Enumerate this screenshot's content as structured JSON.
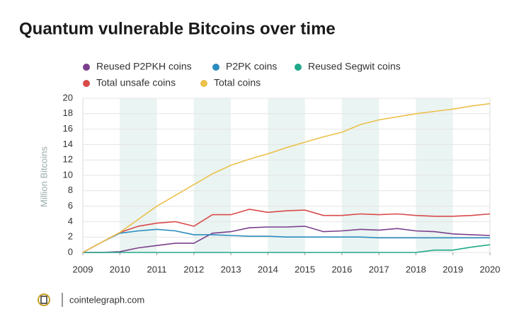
{
  "chart_data": {
    "type": "line",
    "title": "Quantum vulnerable Bitcoins over time",
    "y_label": "Million Bitcoins",
    "x": [
      2009,
      2009.5,
      2010,
      2010.5,
      2011,
      2011.5,
      2012,
      2012.5,
      2013,
      2013.5,
      2014,
      2014.5,
      2015,
      2015.5,
      2016,
      2016.5,
      2017,
      2017.5,
      2018,
      2018.5,
      2019,
      2019.5,
      2020
    ],
    "series": [
      {
        "name": "Reused P2PKH coins",
        "color": "#7b3f8c",
        "values": [
          0,
          0,
          0.1,
          0.6,
          0.9,
          1.2,
          1.2,
          2.5,
          2.7,
          3.2,
          3.3,
          3.3,
          3.4,
          2.7,
          2.8,
          3.0,
          2.9,
          3.1,
          2.8,
          2.7,
          2.4,
          2.3,
          2.2
        ]
      },
      {
        "name": "P2PK coins",
        "color": "#2b8cbe",
        "values": [
          0,
          1.3,
          2.5,
          2.8,
          3.0,
          2.8,
          2.3,
          2.3,
          2.2,
          2.1,
          2.1,
          2.0,
          2.0,
          2.0,
          2.0,
          2.0,
          1.9,
          1.9,
          1.9,
          1.9,
          1.9,
          1.9,
          1.9
        ]
      },
      {
        "name": "Reused Segwit coins",
        "color": "#1fa98a",
        "values": [
          0,
          0,
          0,
          0,
          0,
          0,
          0,
          0,
          0,
          0,
          0,
          0,
          0,
          0,
          0,
          0,
          0,
          0,
          0,
          0.3,
          0.3,
          0.7,
          1.0
        ]
      },
      {
        "name": "Total unsafe coins",
        "color": "#d94a4a",
        "values": [
          0,
          1.3,
          2.6,
          3.4,
          3.8,
          4.0,
          3.4,
          4.9,
          4.9,
          5.6,
          5.2,
          5.4,
          5.5,
          4.8,
          4.8,
          5.0,
          4.9,
          5.0,
          4.8,
          4.7,
          4.7,
          4.8,
          5.0
        ]
      },
      {
        "name": "Total coins",
        "color": "#ecc04a",
        "values": [
          0,
          1.3,
          2.6,
          4.3,
          6.0,
          7.4,
          8.8,
          10.2,
          11.3,
          12.1,
          12.8,
          13.6,
          14.3,
          15.0,
          15.6,
          16.6,
          17.2,
          17.6,
          18.0,
          18.3,
          18.6,
          19.0,
          19.3
        ]
      }
    ],
    "xlim": [
      2009,
      2020
    ],
    "xticks": [
      2009,
      2010,
      2011,
      2012,
      2013,
      2014,
      2015,
      2016,
      2017,
      2018,
      2019,
      2020
    ],
    "ylim": [
      0,
      20
    ],
    "yticks": [
      0,
      2,
      4,
      6,
      8,
      10,
      12,
      14,
      16,
      18,
      20
    ],
    "grid": true
  },
  "source": "cointelegraph.com"
}
